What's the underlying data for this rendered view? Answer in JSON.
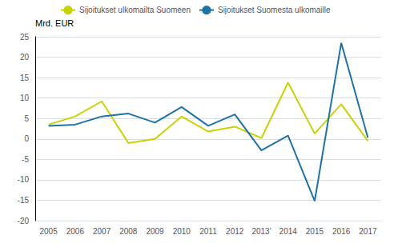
{
  "chart_data": {
    "type": "line",
    "y_label": "Mrd. EUR",
    "categories": [
      "2005",
      "2006",
      "2007",
      "2008",
      "2009",
      "2010",
      "2011",
      "2012",
      "2013'",
      "2014",
      "2015",
      "2016",
      "2017"
    ],
    "series": [
      {
        "name": "Sijoitukset ulkomailta Suomeen",
        "color": "#c8d400",
        "values": [
          3.5,
          5.5,
          9.2,
          -1.0,
          0.0,
          5.5,
          1.8,
          3.0,
          0.2,
          13.8,
          1.3,
          8.5,
          -0.5
        ]
      },
      {
        "name": "Sijoitukset Suomesta ulkomaille",
        "color": "#1e72a8",
        "values": [
          3.2,
          3.5,
          5.5,
          6.2,
          4.0,
          7.8,
          3.2,
          6.0,
          -2.8,
          0.8,
          -15.2,
          23.5,
          0.3
        ]
      }
    ],
    "ylim": [
      -20,
      25
    ],
    "yticks": [
      -20,
      -15,
      -10,
      -5,
      0,
      5,
      10,
      15,
      20,
      25
    ],
    "grid": true,
    "legend": "upper left"
  }
}
